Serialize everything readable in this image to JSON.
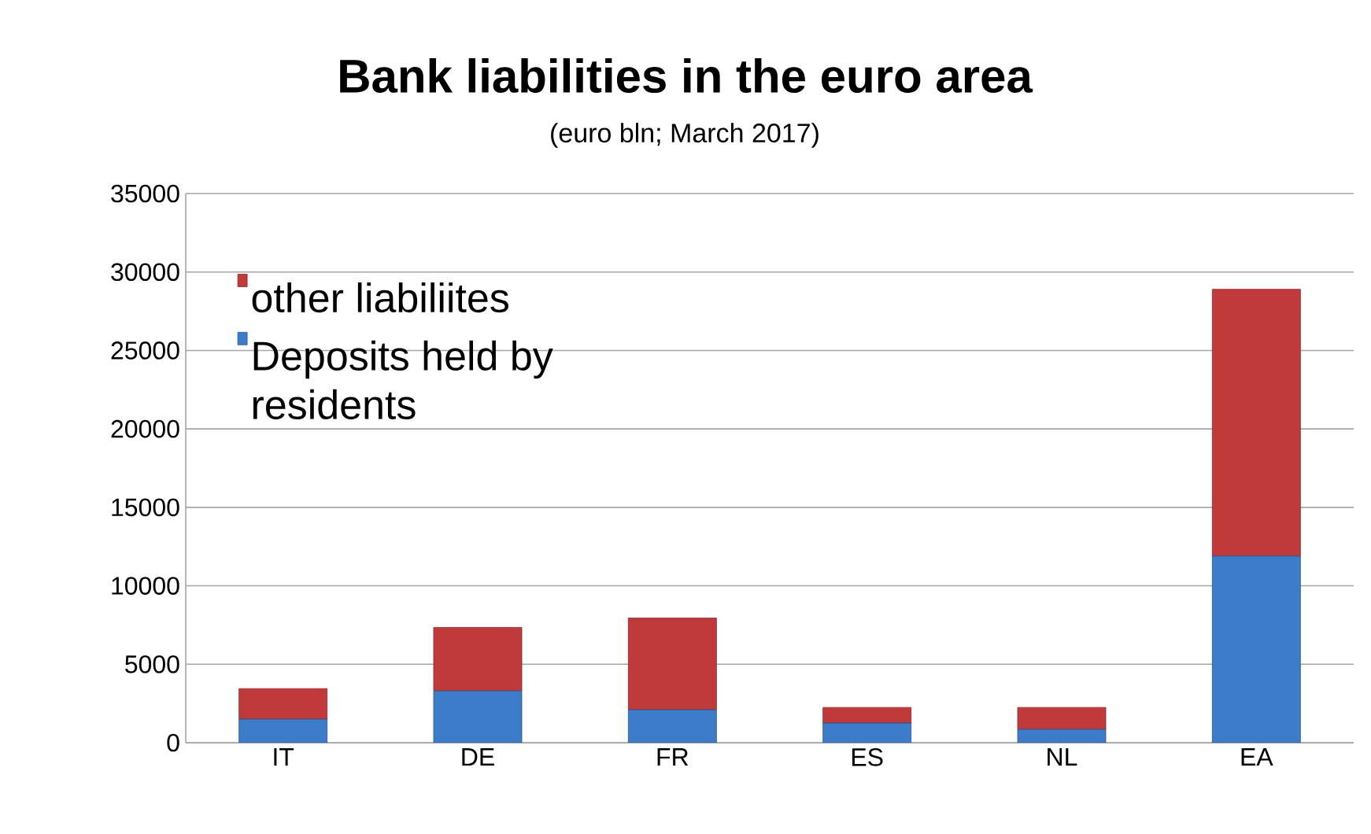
{
  "chart_data": {
    "type": "bar",
    "title": "Bank liabilities in the euro area",
    "subtitle": "(euro bln; March 2017)",
    "categories": [
      "IT",
      "DE",
      "FR",
      "ES",
      "NL",
      "EA"
    ],
    "stacked": true,
    "series": [
      {
        "name": "Deposits held by residents",
        "color": "#3d7cc9",
        "values": [
          1500,
          3300,
          2100,
          1250,
          850,
          11900
        ]
      },
      {
        "name": "other liabiliites",
        "color": "#c0393b",
        "values": [
          1950,
          4050,
          5850,
          1000,
          1400,
          17000
        ]
      }
    ],
    "ylim": [
      0,
      35000
    ],
    "yticks": [
      0,
      5000,
      10000,
      15000,
      20000,
      25000,
      30000,
      35000
    ],
    "grid": "y",
    "legend": "top left"
  }
}
